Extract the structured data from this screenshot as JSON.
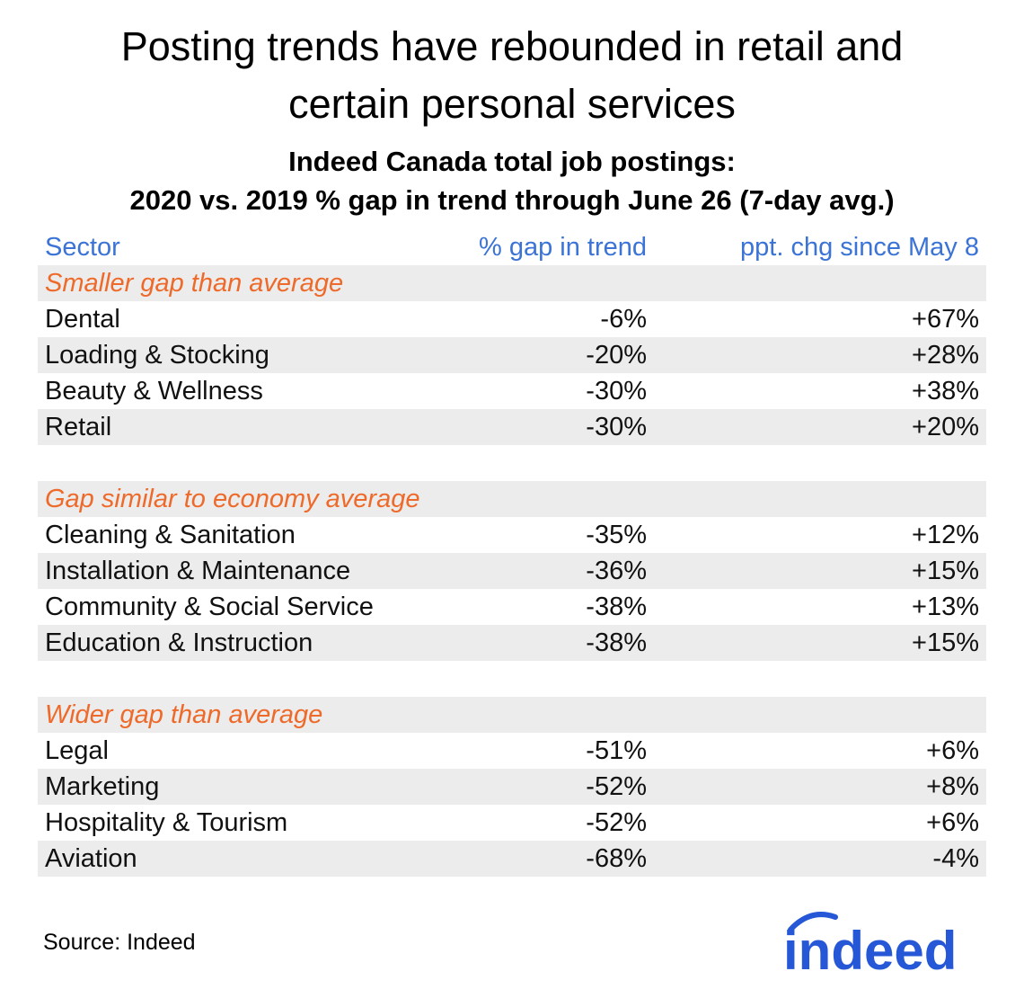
{
  "title_line1": "Posting trends have rebounded in retail and",
  "title_line2": "certain personal services",
  "subtitle_line1": "Indeed Canada total job postings:",
  "subtitle_line2": "2020 vs. 2019 % gap in trend through June 26 (7-day avg.)",
  "headers": {
    "sector": "Sector",
    "gap": "% gap in trend",
    "chg": "ppt. chg since May 8"
  },
  "source": "Source: Indeed",
  "logo_text": "indeed",
  "colors": {
    "header": "#3b73d6",
    "group": "#ee6a2a",
    "shade": "#ececec",
    "logo": "#2557d6"
  },
  "chart_data": {
    "type": "table",
    "title": "Indeed Canada total job postings: 2020 vs. 2019 % gap in trend through June 26 (7-day avg.)",
    "columns": [
      "Sector",
      "% gap in trend",
      "ppt. chg since May 8"
    ],
    "groups": [
      {
        "name": "Smaller gap than average",
        "rows": [
          {
            "sector": "Dental",
            "gap": "-6%",
            "chg": "+67%"
          },
          {
            "sector": "Loading & Stocking",
            "gap": "-20%",
            "chg": "+28%"
          },
          {
            "sector": "Beauty & Wellness",
            "gap": "-30%",
            "chg": "+38%"
          },
          {
            "sector": "Retail",
            "gap": "-30%",
            "chg": "+20%"
          }
        ]
      },
      {
        "name": "Gap similar to economy average",
        "rows": [
          {
            "sector": "Cleaning & Sanitation",
            "gap": "-35%",
            "chg": "+12%"
          },
          {
            "sector": "Installation & Maintenance",
            "gap": "-36%",
            "chg": "+15%"
          },
          {
            "sector": "Community & Social Service",
            "gap": "-38%",
            "chg": "+13%"
          },
          {
            "sector": "Education & Instruction",
            "gap": "-38%",
            "chg": "+15%"
          }
        ]
      },
      {
        "name": "Wider gap than average",
        "rows": [
          {
            "sector": "Legal",
            "gap": "-51%",
            "chg": "+6%"
          },
          {
            "sector": "Marketing",
            "gap": "-52%",
            "chg": "+8%"
          },
          {
            "sector": "Hospitality & Tourism",
            "gap": "-52%",
            "chg": "+6%"
          },
          {
            "sector": "Aviation",
            "gap": "-68%",
            "chg": "-4%"
          }
        ]
      }
    ]
  }
}
